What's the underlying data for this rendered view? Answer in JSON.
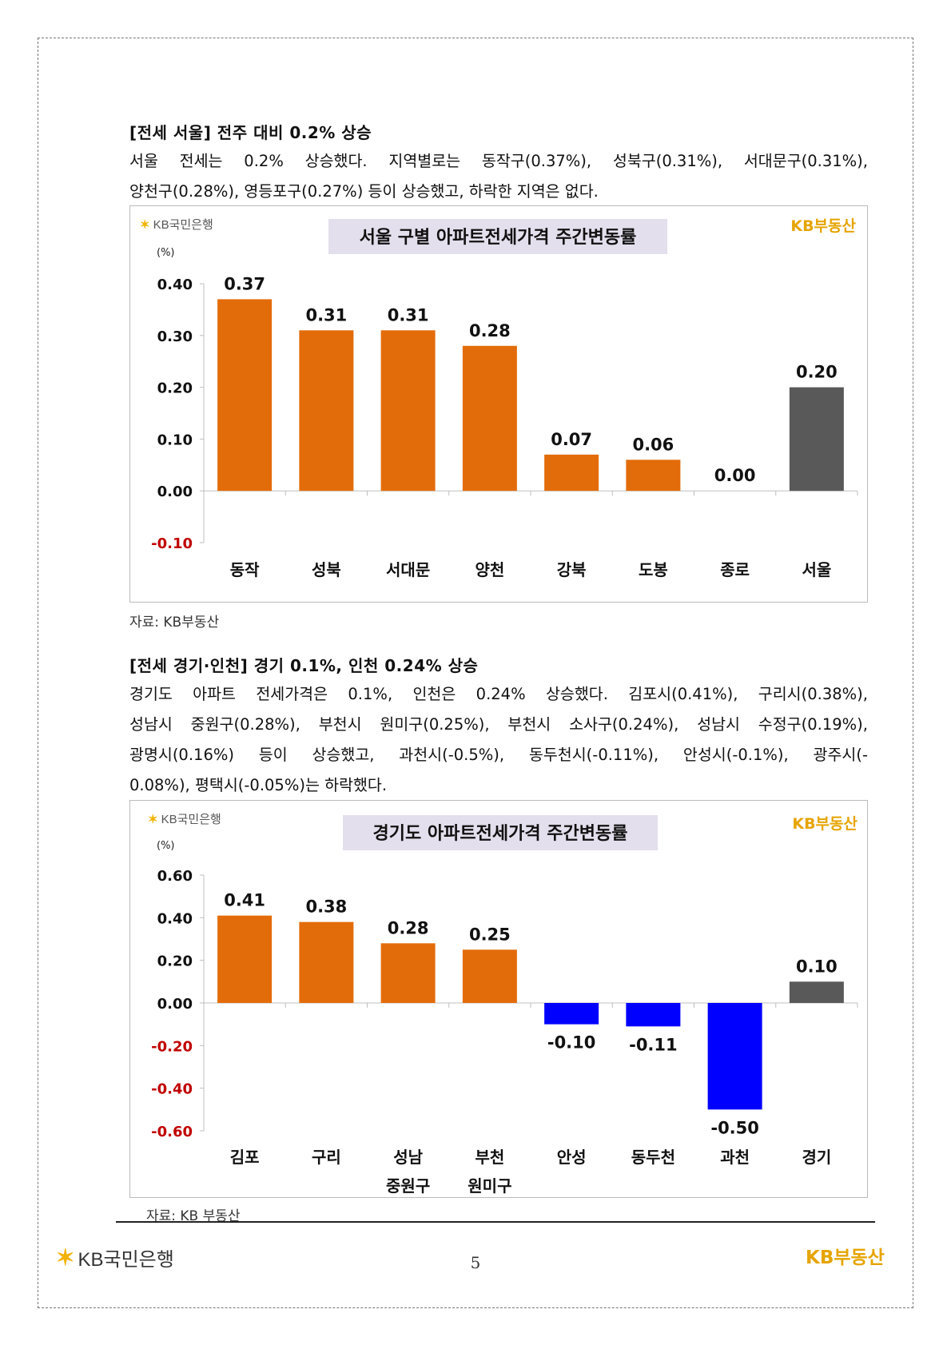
{
  "section1": {
    "heading": "[전세 서울] 전주 대비 0.2% 상승",
    "paragraph_lines": [
      "서울 전세는 0.2% 상승했다. 지역별로는 동작구(0.37%), 성북구(0.31%), 서대문구(0.31%),",
      "양천구(0.28%), 영등포구(0.27%) 등이 상승했고, 하락한 지역은 없다."
    ],
    "source": "자료: KB부동산"
  },
  "section2": {
    "heading": "[전세 경기·인천] 경기 0.1%, 인천 0.24% 상승",
    "paragraph_lines": [
      "경기도 아파트 전세가격은 0.1%, 인천은 0.24% 상승했다. 김포시(0.41%), 구리시(0.38%),",
      "성남시 중원구(0.28%), 부천시 원미구(0.25%), 부천시 소사구(0.24%), 성남시 수정구(0.19%),",
      "광명시(0.16%) 등이 상승했고, 과천시(-0.5%), 동두천시(-0.11%), 안성시(-0.1%), 광주시(-",
      "0.08%), 평택시(-0.05%)는 하락했다."
    ],
    "source": "자료: KB 부동산"
  },
  "logos": {
    "bank": "KB국민은행",
    "realestate": "KB부동산"
  },
  "colors": {
    "orange": "#e36c0a",
    "gray": "#595959",
    "blue": "#0000ff",
    "negative_tick": "#c00000",
    "title_bg": "#e4dfec"
  },
  "chart_data": [
    {
      "type": "bar",
      "title": "서울 구별 아파트전세가격 주간변동률",
      "unit": "(%)",
      "categories": [
        [
          "동작"
        ],
        [
          "성북"
        ],
        [
          "서대문"
        ],
        [
          "양천"
        ],
        [
          "강북"
        ],
        [
          "도봉"
        ],
        [
          "종로"
        ],
        [
          "서울"
        ]
      ],
      "values": [
        0.37,
        0.31,
        0.31,
        0.28,
        0.07,
        0.06,
        0.0,
        0.2
      ],
      "value_labels": [
        "0.37",
        "0.31",
        "0.31",
        "0.28",
        "0.07",
        "0.06",
        "0.00",
        "0.20"
      ],
      "bar_colors": [
        "orange",
        "orange",
        "orange",
        "orange",
        "orange",
        "orange",
        "orange",
        "gray"
      ],
      "ylim": [
        -0.1,
        0.4
      ],
      "yticks": [
        0.4,
        0.3,
        0.2,
        0.1,
        0.0,
        -0.1
      ],
      "ytick_labels": [
        "0.40",
        "0.30",
        "0.20",
        "0.10",
        "0.00",
        "-0.10"
      ],
      "grid": false,
      "legend": "none"
    },
    {
      "type": "bar",
      "title": "경기도 아파트전세가격 주간변동률",
      "unit": "(%)",
      "categories": [
        [
          "김포"
        ],
        [
          "구리"
        ],
        [
          "성남",
          "중원구"
        ],
        [
          "부천",
          "원미구"
        ],
        [
          "안성"
        ],
        [
          "동두천"
        ],
        [
          "과천"
        ],
        [
          "경기"
        ]
      ],
      "values": [
        0.41,
        0.38,
        0.28,
        0.25,
        -0.1,
        -0.11,
        -0.5,
        0.1
      ],
      "value_labels": [
        "0.41",
        "0.38",
        "0.28",
        "0.25",
        "-0.10",
        "-0.11",
        "-0.50",
        "0.10"
      ],
      "bar_colors": [
        "orange",
        "orange",
        "orange",
        "orange",
        "blue",
        "blue",
        "blue",
        "gray"
      ],
      "ylim": [
        -0.6,
        0.6
      ],
      "yticks": [
        0.6,
        0.4,
        0.2,
        0.0,
        -0.2,
        -0.4,
        -0.6
      ],
      "ytick_labels": [
        "0.60",
        "0.40",
        "0.20",
        "0.00",
        "-0.20",
        "-0.40",
        "-0.60"
      ],
      "grid": false,
      "legend": "none"
    }
  ],
  "footer": {
    "page_number": "5"
  }
}
